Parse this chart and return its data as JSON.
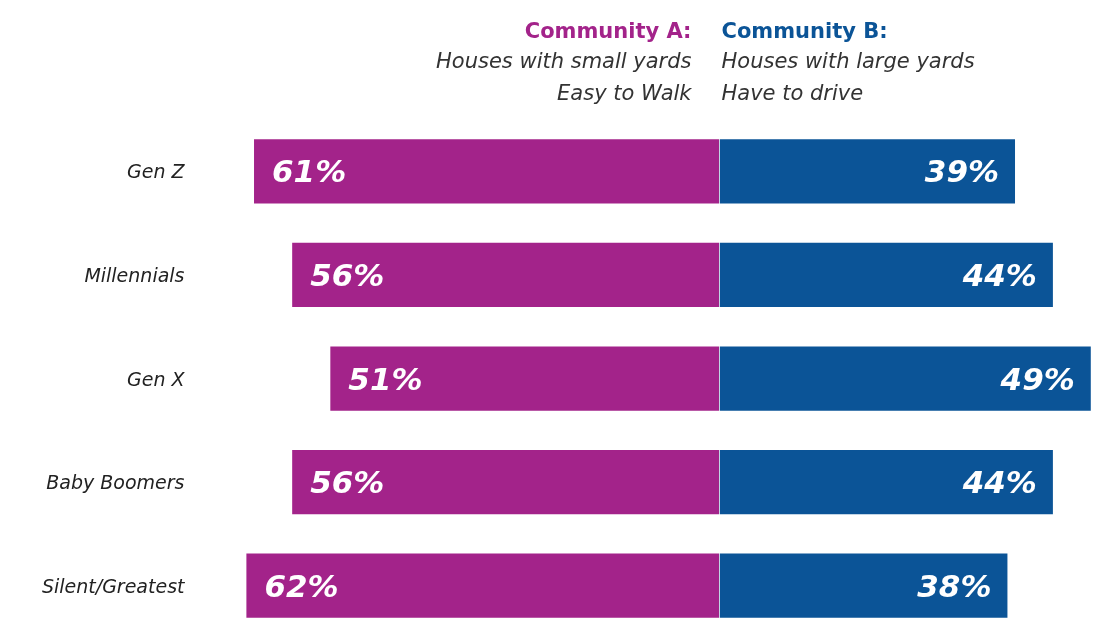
{
  "chart_data": [
    {
      "type": "bar",
      "orientation": "horizontal",
      "categories": [
        "Gen Z",
        "Millennials",
        "Gen X",
        "Baby Boomers",
        "Silent/Greatest"
      ],
      "series": [
        {
          "name": "Community A:",
          "color": "#a3238a",
          "values": [
            61,
            56,
            51,
            56,
            62
          ],
          "value_labels": [
            "61%",
            "56%",
            "51%",
            "56%",
            "62%"
          ]
        }
      ],
      "annotations": [
        "Houses with small yards\nEasy to Walk"
      ]
    },
    {
      "type": "bar",
      "orientation": "horizontal",
      "tick_labels": false,
      "categories": [
        "Gen Z",
        "Millennials",
        "Gen X",
        "Baby Boomers",
        "Silent/Greatest"
      ],
      "series": [
        {
          "name": "Community B:",
          "color": "#0b5497",
          "values": [
            39,
            44,
            49,
            44,
            38
          ],
          "value_labels": [
            "39%",
            "44%",
            "49%",
            "44%",
            "38%"
          ]
        }
      ],
      "annotations": [
        "Houses with large yards\nHave to drive"
      ]
    }
  ]
}
